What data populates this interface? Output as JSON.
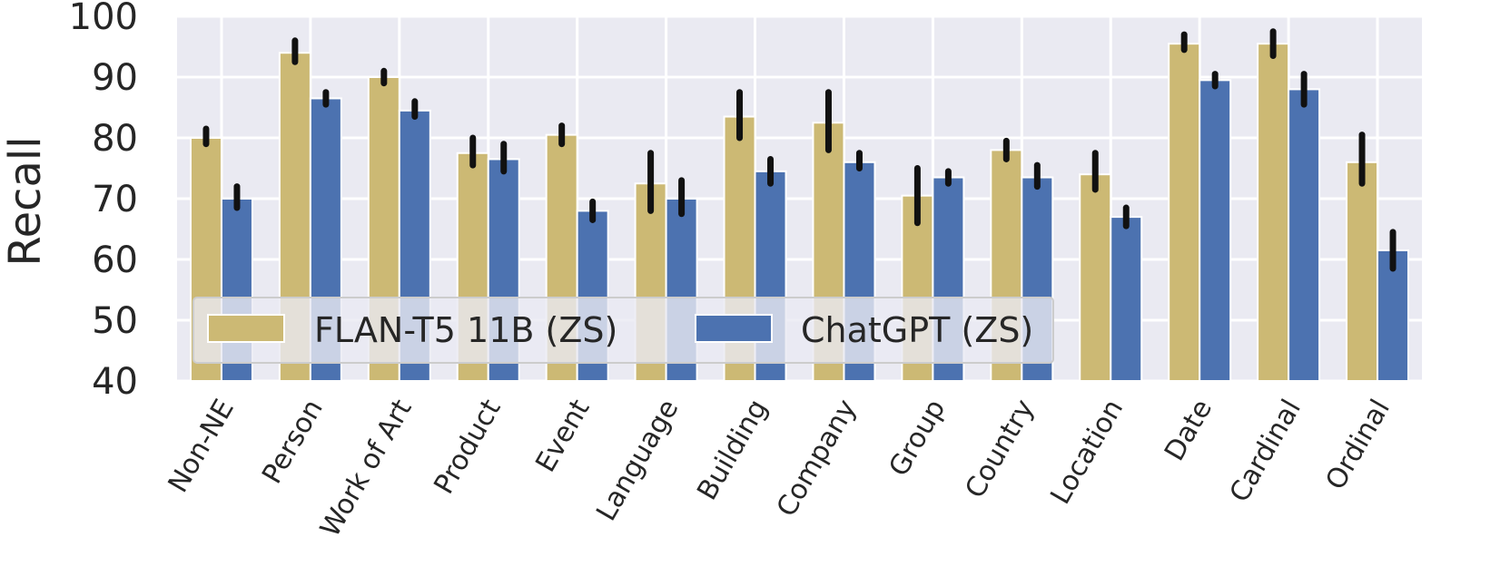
{
  "chart_data": {
    "type": "bar",
    "title": "",
    "xlabel": "",
    "ylabel": "Recall",
    "ylim": [
      40,
      100
    ],
    "yticks": [
      40,
      50,
      60,
      70,
      80,
      90,
      100
    ],
    "grid": true,
    "legend_position": "lower-left",
    "categories": [
      "Non-NE",
      "Person",
      "Work of Art",
      "Product",
      "Event",
      "Language",
      "Building",
      "Company",
      "Group",
      "Country",
      "Location",
      "Date",
      "Cardinal",
      "Ordinal"
    ],
    "series": [
      {
        "name": "FLAN-T5 11B (ZS)",
        "color": "#ccb974",
        "values": [
          80,
          94,
          90,
          77.5,
          80.5,
          72.5,
          83.5,
          82.5,
          70.5,
          78,
          74,
          95.5,
          95.5,
          76
        ],
        "error_low": [
          79,
          92.5,
          89,
          75.5,
          79,
          68,
          80,
          78,
          66,
          76.5,
          71.5,
          94.5,
          93.5,
          72.5
        ],
        "error_high": [
          81.5,
          96,
          91,
          80,
          82,
          77.5,
          87.5,
          87.5,
          75,
          79.5,
          77.5,
          97,
          97.5,
          80.5
        ]
      },
      {
        "name": "ChatGPT (ZS)",
        "color": "#4c72b0",
        "values": [
          70,
          86.5,
          84.5,
          76.5,
          68,
          70,
          74.5,
          76,
          73.5,
          73.5,
          67,
          89.5,
          88,
          61.5
        ],
        "error_low": [
          68.5,
          85.5,
          83.5,
          74.5,
          66.5,
          67.5,
          72.5,
          75,
          72.5,
          72,
          65.5,
          88.5,
          85.5,
          58.5
        ],
        "error_high": [
          72,
          87.5,
          86,
          79,
          69.5,
          73,
          76.5,
          77.5,
          74.5,
          75.5,
          68.5,
          90.5,
          90.5,
          64.5
        ]
      }
    ]
  }
}
